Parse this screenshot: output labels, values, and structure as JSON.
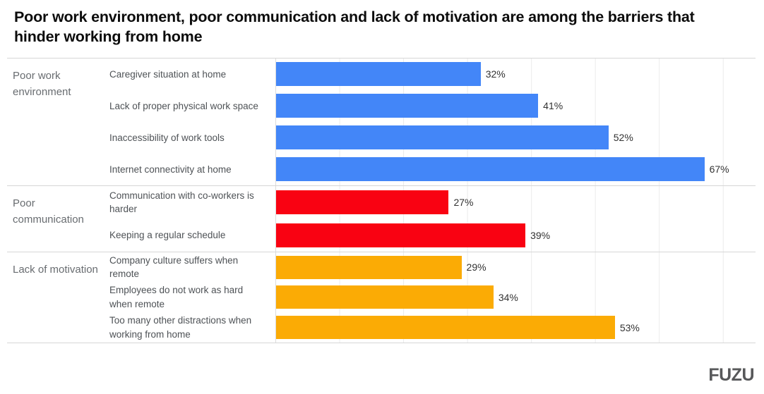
{
  "title": "Poor work environment, poor communication and lack of motivation are among the barriers that hinder working from home",
  "logo": "FUZU",
  "colors": {
    "blue": "#4386F8",
    "red": "#F90212",
    "orange": "#FBAB05",
    "gridline": "#ebebeb",
    "divider": "#d6d6d6",
    "value_text": "#323232",
    "category_text": "#4e5256",
    "group_text": "#686c70"
  },
  "chart_data": {
    "type": "bar",
    "orientation": "horizontal",
    "value_suffix": "%",
    "xlim": [
      0,
      75
    ],
    "gridline_interval": 10,
    "gridlines": [
      10,
      20,
      30,
      40,
      50,
      60,
      70
    ],
    "axis_tick_labels_shown": false,
    "data_labels_shown": true,
    "groups": [
      {
        "label": "Poor work environment",
        "color": "#4386F8",
        "items": [
          {
            "category": "Caregiver situation at home",
            "value": 32
          },
          {
            "category": "Lack of proper physical work space",
            "value": 41
          },
          {
            "category": "Inaccessibility of work tools",
            "value": 52
          },
          {
            "category": "Internet connectivity at home",
            "value": 67
          }
        ]
      },
      {
        "label": "Poor communication",
        "color": "#F90212",
        "items": [
          {
            "category": "Communication with co-workers is harder",
            "value": 27
          },
          {
            "category": "Keeping a regular schedule",
            "value": 39
          }
        ]
      },
      {
        "label": "Lack of motivation",
        "color": "#FBAB05",
        "items": [
          {
            "category": "Company culture suffers when remote",
            "value": 29
          },
          {
            "category": "Employees do not work as hard when remote",
            "value": 34
          },
          {
            "category": "Too many other distractions when working from home",
            "value": 53
          }
        ]
      }
    ]
  }
}
